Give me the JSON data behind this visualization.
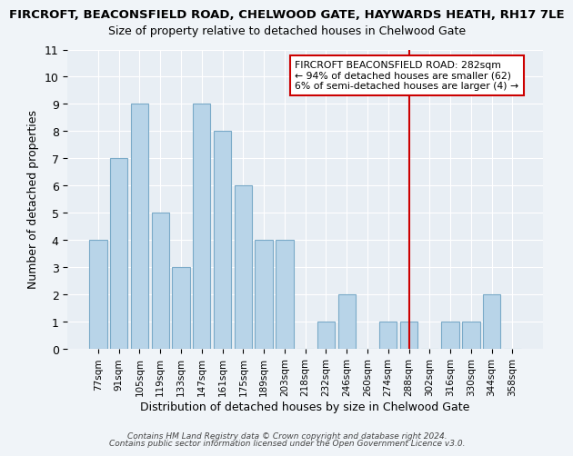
{
  "title_line1": "FIRCROFT, BEACONSFIELD ROAD, CHELWOOD GATE, HAYWARDS HEATH, RH17 7LE",
  "title_line2": "Size of property relative to detached houses in Chelwood Gate",
  "xlabel": "Distribution of detached houses by size in Chelwood Gate",
  "ylabel": "Number of detached properties",
  "bins": [
    "77sqm",
    "91sqm",
    "105sqm",
    "119sqm",
    "133sqm",
    "147sqm",
    "161sqm",
    "175sqm",
    "189sqm",
    "203sqm",
    "218sqm",
    "232sqm",
    "246sqm",
    "260sqm",
    "274sqm",
    "288sqm",
    "302sqm",
    "316sqm",
    "330sqm",
    "344sqm",
    "358sqm"
  ],
  "counts": [
    4,
    7,
    9,
    5,
    3,
    9,
    8,
    6,
    4,
    4,
    0,
    1,
    2,
    0,
    1,
    1,
    0,
    1,
    1,
    2,
    0
  ],
  "bar_color": "#b8d4e8",
  "bar_edge_color": "#7aaac8",
  "reference_line_x": 15.0,
  "reference_line_color": "#cc0000",
  "annotation_title": "FIRCROFT BEACONSFIELD ROAD: 282sqm",
  "annotation_line1": "← 94% of detached houses are smaller (62)",
  "annotation_line2": "6% of semi-detached houses are larger (4) →",
  "annotation_box_color": "#ffffff",
  "annotation_box_edge": "#cc0000",
  "ylim": [
    0,
    11
  ],
  "yticks": [
    0,
    1,
    2,
    3,
    4,
    5,
    6,
    7,
    8,
    9,
    10,
    11
  ],
  "footer1": "Contains HM Land Registry data © Crown copyright and database right 2024.",
  "footer2": "Contains public sector information licensed under the Open Government Licence v3.0.",
  "bg_color": "#f0f4f8",
  "plot_bg_color": "#e8eef4"
}
